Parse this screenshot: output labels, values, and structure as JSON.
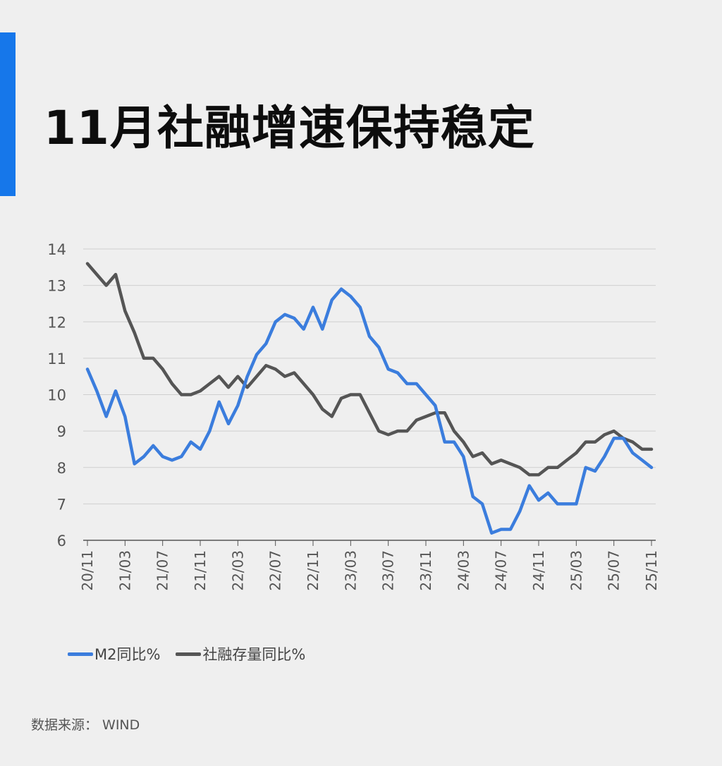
{
  "title": "11月社融增速保持稳定",
  "source": "数据来源：  WIND",
  "colors": {
    "accent": "#1677ea",
    "m2": "#3b7ddd",
    "tsf": "#555555",
    "grid": "#cfcfcf",
    "axis": "#555555"
  },
  "chart_data": {
    "type": "line",
    "ylim": [
      6,
      14
    ],
    "yticks": [
      6,
      7,
      8,
      9,
      10,
      11,
      12,
      13,
      14
    ],
    "grid": true,
    "legend_position": "bottom-left",
    "x_tick_labels": [
      "20/11",
      "21/03",
      "21/07",
      "21/11",
      "22/03",
      "22/07",
      "22/11",
      "23/03",
      "23/07",
      "23/11",
      "24/03",
      "24/07",
      "24/11",
      "25/03",
      "25/07",
      "25/11"
    ],
    "categories": [
      "20/11",
      "20/12",
      "21/01",
      "21/02",
      "21/03",
      "21/04",
      "21/05",
      "21/06",
      "21/07",
      "21/08",
      "21/09",
      "21/10",
      "21/11",
      "21/12",
      "22/01",
      "22/02",
      "22/03",
      "22/04",
      "22/05",
      "22/06",
      "22/07",
      "22/08",
      "22/09",
      "22/10",
      "22/11",
      "22/12",
      "23/01",
      "23/02",
      "23/03",
      "23/04",
      "23/05",
      "23/06",
      "23/07",
      "23/08",
      "23/09",
      "23/10",
      "23/11",
      "23/12",
      "24/01",
      "24/02",
      "24/03",
      "24/04",
      "24/05",
      "24/06",
      "24/07",
      "24/08",
      "24/09",
      "24/10",
      "24/11",
      "24/12",
      "25/01",
      "25/02",
      "25/03",
      "25/04",
      "25/05",
      "25/06",
      "25/07",
      "25/08",
      "25/09",
      "25/10",
      "25/11"
    ],
    "series": [
      {
        "name": "M2同比%",
        "values": [
          10.7,
          10.1,
          9.4,
          10.1,
          9.4,
          8.1,
          8.3,
          8.6,
          8.3,
          8.2,
          8.3,
          8.7,
          8.5,
          9.0,
          9.8,
          9.2,
          9.7,
          10.5,
          11.1,
          11.4,
          12.0,
          12.2,
          12.1,
          11.8,
          12.4,
          11.8,
          12.6,
          12.9,
          12.7,
          12.4,
          11.6,
          11.3,
          10.7,
          10.6,
          10.3,
          10.3,
          10.0,
          9.7,
          8.7,
          8.7,
          8.3,
          7.2,
          7.0,
          6.2,
          6.3,
          6.3,
          6.8,
          7.5,
          7.1,
          7.3,
          7.0,
          7.0,
          7.0,
          8.0,
          7.9,
          8.3,
          8.8,
          8.8,
          8.4,
          8.2,
          8.0
        ]
      },
      {
        "name": "社融存量同比%",
        "values": [
          13.6,
          13.3,
          13.0,
          13.3,
          12.3,
          11.7,
          11.0,
          11.0,
          10.7,
          10.3,
          10.0,
          10.0,
          10.1,
          10.3,
          10.5,
          10.2,
          10.5,
          10.2,
          10.5,
          10.8,
          10.7,
          10.5,
          10.6,
          10.3,
          10.0,
          9.6,
          9.4,
          9.9,
          10.0,
          10.0,
          9.5,
          9.0,
          8.9,
          9.0,
          9.0,
          9.3,
          9.4,
          9.5,
          9.5,
          9.0,
          8.7,
          8.3,
          8.4,
          8.1,
          8.2,
          8.1,
          8.0,
          7.8,
          7.8,
          8.0,
          8.0,
          8.2,
          8.4,
          8.7,
          8.7,
          8.9,
          9.0,
          8.8,
          8.7,
          8.5,
          8.5
        ]
      }
    ]
  }
}
